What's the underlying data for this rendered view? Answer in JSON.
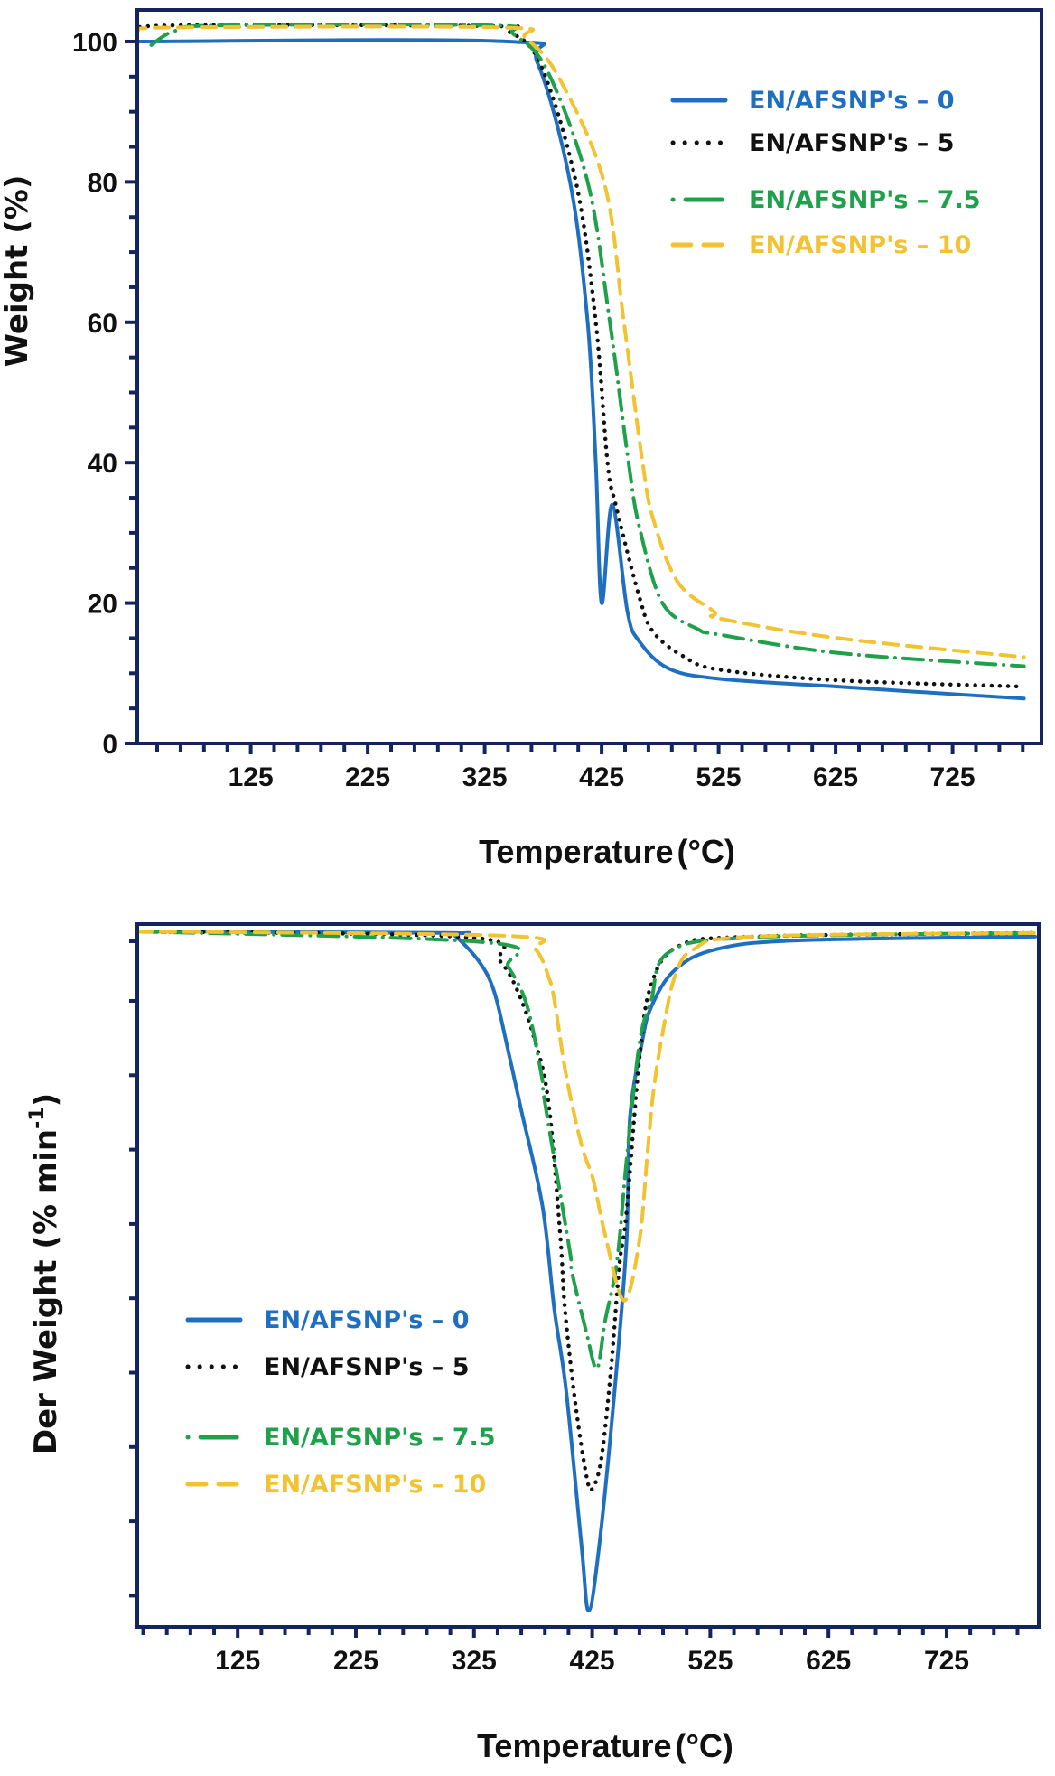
{
  "chart_data": [
    {
      "type": "line",
      "title": "",
      "xlabel": "Temperature",
      "xlabel_unit": "(°C)",
      "ylabel": "Weight (%)",
      "xlim": [
        28,
        801
      ],
      "ylim": [
        0,
        104.5
      ],
      "x_ticks": [
        125,
        225,
        325,
        425,
        525,
        625,
        725
      ],
      "y_ticks": [
        0,
        20,
        40,
        60,
        80,
        100
      ],
      "x_minor_step": 20,
      "y_minor_step": 5,
      "grid": false,
      "legend_position": "top-right",
      "series": [
        {
          "name": "EN/AFSNP's – 0",
          "color": "#1f6fc0",
          "style": "solid",
          "x": [
            28,
            345,
            370,
            398,
            413,
            420,
            425,
            434,
            447,
            457,
            482,
            526,
            627,
            700,
            786
          ],
          "y": [
            100,
            100,
            97,
            80,
            60,
            40,
            20,
            34,
            18.8,
            14.6,
            10.7,
            9.2,
            8.1,
            7.3,
            6.4
          ]
        },
        {
          "name": "EN/AFSNP's – 5",
          "color": "#111111",
          "style": "dotted",
          "x": [
            28,
            60,
            330,
            345,
            372,
            403,
            420,
            430,
            437,
            457,
            469,
            495,
            526,
            627,
            786
          ],
          "y": [
            101.5,
            102.3,
            102.2,
            101.5,
            97,
            80,
            60,
            40,
            34,
            21,
            15.9,
            12.4,
            10.5,
            9.0,
            8.1
          ]
        },
        {
          "name": "EN/AFSNP's – 7.5",
          "color": "#1fa04a",
          "style": "dash-dot",
          "x": [
            40,
            60,
            100,
            330,
            350,
            378,
            413,
            432,
            448,
            457,
            477,
            507,
            526,
            627,
            786
          ],
          "y": [
            99.5,
            101.5,
            102.3,
            102.3,
            101,
            96,
            80,
            60,
            40,
            31,
            20,
            16.3,
            15.5,
            12.9,
            11
          ]
        },
        {
          "name": "EN/AFSNP's – 10",
          "color": "#f2c230",
          "style": "dashed",
          "x": [
            28,
            60,
            340,
            360,
            388,
            427,
            444,
            460,
            469,
            490,
            521,
            526,
            627,
            786
          ],
          "y": [
            101.5,
            102,
            102,
            100.5,
            95,
            80,
            60,
            40,
            32,
            23,
            18.8,
            17.8,
            15.0,
            12.3
          ]
        }
      ]
    },
    {
      "type": "line",
      "title": "",
      "xlabel": "Temperature",
      "xlabel_unit": "(°C)",
      "ylabel": "Der Weight (% min",
      "ylabel_sup": "-1",
      "ylabel_close": ")",
      "xlim": [
        40,
        803
      ],
      "ylim": [
        -9.4,
        0.12
      ],
      "y_units": "arbitrary (unlabeled)",
      "x_ticks": [
        125,
        225,
        325,
        425,
        525,
        625,
        725
      ],
      "y_ticks": [],
      "y_minor_ticks": [
        -0.9,
        -2.9,
        -3.9,
        -4.9,
        -5.9,
        -6.9,
        -7.9,
        -8.9,
        -1.9
      ],
      "x_minor_step": 20,
      "grid": false,
      "legend_position": "bottom-left",
      "series": [
        {
          "name": "EN/AFSNP's – 0",
          "color": "#1f6fc0",
          "style": "solid",
          "x": [
            40,
            300,
            309,
            329,
            342,
            354,
            365,
            383,
            393,
            403,
            416,
            422,
            431,
            444,
            454,
            457,
            467,
            475,
            495,
            530,
            600,
            800
          ],
          "y": [
            0.02,
            0,
            -0.04,
            -0.38,
            -0.79,
            -1.6,
            -2.4,
            -3.7,
            -5.1,
            -6.2,
            -8.3,
            -9.18,
            -8.3,
            -6.2,
            -4.2,
            -2.5,
            -1.5,
            -1.0,
            -0.5,
            -0.22,
            -0.1,
            -0.05
          ]
        },
        {
          "name": "EN/AFSNP's – 5",
          "color": "#111111",
          "style": "dotted",
          "x": [
            40,
            321,
            347,
            362,
            377,
            388,
            398,
            402,
            411,
            421,
            426,
            433,
            441,
            448,
            454,
            465,
            475,
            498,
            560,
            800
          ],
          "y": [
            0.02,
            -0.06,
            -0.38,
            -0.79,
            -1.48,
            -2.29,
            -4.1,
            -5.1,
            -6.4,
            -7.42,
            -7.5,
            -7.1,
            -5.9,
            -4.5,
            -3.8,
            -1.7,
            -0.7,
            -0.18,
            -0.05,
            0
          ]
        },
        {
          "name": "EN/AFSNP's – 7.5",
          "color": "#1fa04a",
          "style": "dash-dot",
          "x": [
            40,
            337,
            354,
            370,
            383,
            385,
            406,
            408,
            420,
            429,
            436,
            446,
            454,
            465,
            475,
            490,
            560,
            800
          ],
          "y": [
            0.02,
            -0.13,
            -0.46,
            -0.99,
            -2.0,
            -2.3,
            -4.3,
            -4.6,
            -5.4,
            -5.9,
            -5.25,
            -4.45,
            -3.1,
            -1.5,
            -0.91,
            -0.26,
            -0.06,
            0
          ]
        },
        {
          "name": "EN/AFSNP's – 10",
          "color": "#f2c230",
          "style": "dashed",
          "x": [
            40,
            354,
            377,
            388,
            393,
            403,
            416,
            426,
            436,
            452,
            465,
            472,
            477,
            485,
            495,
            511,
            560,
            800
          ],
          "y": [
            0.02,
            -0.04,
            -0.22,
            -0.59,
            -0.91,
            -1.93,
            -2.87,
            -3.35,
            -4.09,
            -4.98,
            -4.16,
            -2.94,
            -2.13,
            -1.32,
            -0.59,
            -0.22,
            -0.05,
            0
          ]
        }
      ]
    }
  ],
  "legend_labels": {
    "prefix": "EN/AFSNP's",
    "suffixes": [
      "0",
      "5",
      "7.5",
      "10"
    ]
  }
}
